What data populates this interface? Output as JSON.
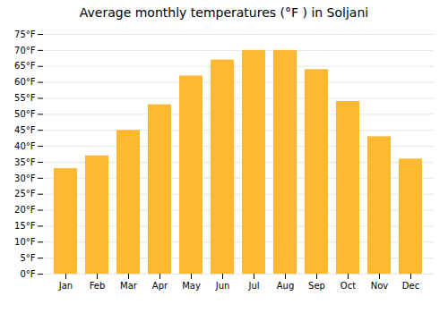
{
  "chart_data": {
    "type": "bar",
    "title": "Average monthly temperatures (°F ) in Soljani",
    "categories": [
      "Jan",
      "Feb",
      "Mar",
      "Apr",
      "May",
      "Jun",
      "Jul",
      "Aug",
      "Sep",
      "Oct",
      "Nov",
      "Dec"
    ],
    "values": [
      33,
      37,
      45,
      53,
      62,
      67,
      70,
      70,
      64,
      54,
      43,
      36
    ],
    "color": "#FDB931",
    "ylim": [
      0,
      75
    ],
    "yticks": [
      {
        "value": 0,
        "label": "0°F"
      },
      {
        "value": 5,
        "label": "5°F"
      },
      {
        "value": 10,
        "label": "10°F"
      },
      {
        "value": 15,
        "label": "15°F"
      },
      {
        "value": 20,
        "label": "20°F"
      },
      {
        "value": 25,
        "label": "25°F"
      },
      {
        "value": 30,
        "label": "30°F"
      },
      {
        "value": 35,
        "label": "35°F"
      },
      {
        "value": 40,
        "label": "40°F"
      },
      {
        "value": 45,
        "label": "45°F"
      },
      {
        "value": 50,
        "label": "50°F"
      },
      {
        "value": 55,
        "label": "55°F"
      },
      {
        "value": 60,
        "label": "60°F"
      },
      {
        "value": 65,
        "label": "65°F"
      },
      {
        "value": 70,
        "label": "70°F"
      },
      {
        "value": 75,
        "label": "75°F"
      }
    ],
    "grid": true
  }
}
